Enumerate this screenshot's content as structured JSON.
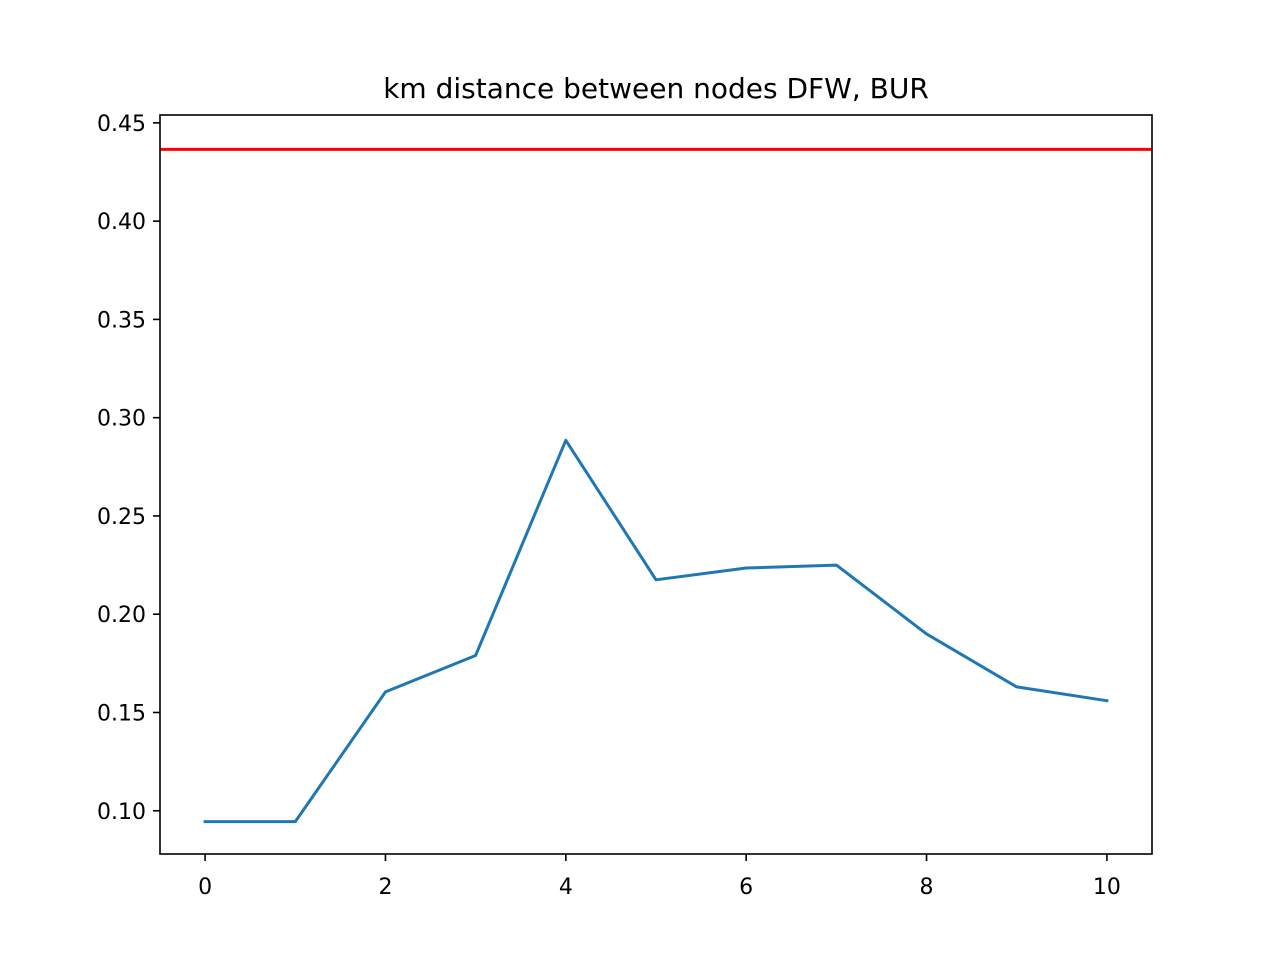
{
  "chart_data": {
    "type": "line",
    "title": "km distance between nodes DFW, BUR",
    "xlabel": "",
    "ylabel": "",
    "xlim": [
      -0.5,
      10.5
    ],
    "ylim": [
      0.078,
      0.454
    ],
    "x_ticks": [
      0,
      2,
      4,
      6,
      8,
      10
    ],
    "x_tick_labels": [
      "0",
      "2",
      "4",
      "6",
      "8",
      "10"
    ],
    "y_ticks": [
      0.1,
      0.15,
      0.2,
      0.25,
      0.3,
      0.35,
      0.4,
      0.45
    ],
    "y_tick_labels": [
      "0.10",
      "0.15",
      "0.20",
      "0.25",
      "0.30",
      "0.35",
      "0.40",
      "0.45"
    ],
    "grid": false,
    "series": [
      {
        "color": "#1f77b4",
        "x": [
          0,
          1,
          2,
          3,
          4,
          5,
          6,
          7,
          8,
          9,
          10
        ],
        "values": [
          0.0945,
          0.0945,
          0.1605,
          0.179,
          0.2885,
          0.2175,
          0.2235,
          0.225,
          0.19,
          0.163,
          0.156
        ]
      }
    ],
    "reference_lines": [
      {
        "orientation": "horizontal",
        "value": 0.4365,
        "color": "#ff0000"
      }
    ]
  }
}
